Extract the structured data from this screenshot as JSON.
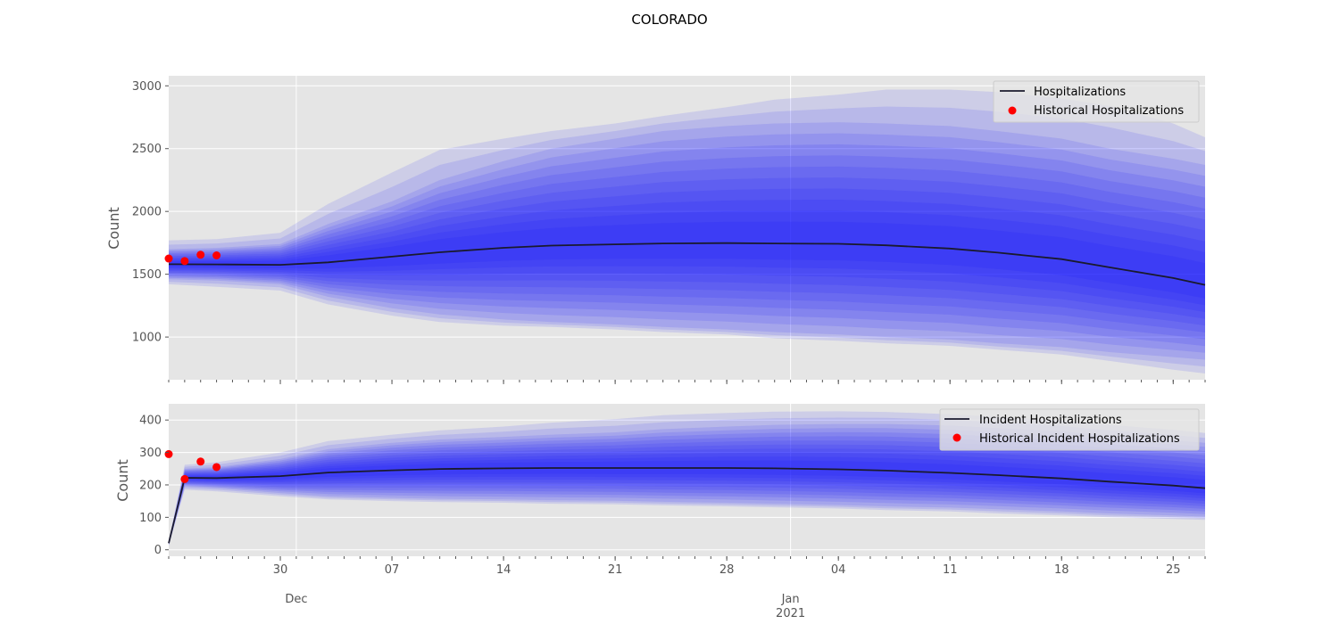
{
  "title": "COLORADO",
  "colors": {
    "background": "#E5E5E5",
    "grid": "#FFFFFF",
    "band": "#0000FF",
    "median": "#1A1A2E",
    "historical": "#FF0000"
  },
  "x_axis": {
    "start": "2020-11-23",
    "end": "2021-01-27",
    "minor_ticks": "daily",
    "major_tick_labels": [
      {
        "date": "2020-11-30",
        "label": "30"
      },
      {
        "date": "2020-12-07",
        "label": "07"
      },
      {
        "date": "2020-12-14",
        "label": "14"
      },
      {
        "date": "2020-12-21",
        "label": "21"
      },
      {
        "date": "2020-12-28",
        "label": "28"
      },
      {
        "date": "2021-01-04",
        "label": "04"
      },
      {
        "date": "2021-01-11",
        "label": "11"
      },
      {
        "date": "2021-01-18",
        "label": "18"
      },
      {
        "date": "2021-01-25",
        "label": "25"
      }
    ],
    "month_labels": [
      {
        "date": "2020-12-01",
        "label": "Dec"
      },
      {
        "date": "2021-01-01",
        "label": "Jan"
      }
    ],
    "year_label": {
      "date": "2021-01-01",
      "label": "2021"
    }
  },
  "chart_data": [
    {
      "type": "area",
      "ylabel": "Count",
      "ylim": [
        660,
        3080
      ],
      "yticks": [
        1000,
        1500,
        2000,
        2500,
        3000
      ],
      "grid": true,
      "legend_position": "top-right",
      "legend": [
        {
          "name": "Hospitalizations",
          "marker": "line"
        },
        {
          "name": "Historical Hospitalizations",
          "marker": "dot"
        }
      ],
      "x": [
        "2020-11-23",
        "2020-11-26",
        "2020-11-30",
        "2020-12-03",
        "2020-12-07",
        "2020-12-10",
        "2020-12-14",
        "2020-12-17",
        "2020-12-21",
        "2020-12-24",
        "2020-12-28",
        "2020-12-31",
        "2021-01-04",
        "2021-01-07",
        "2021-01-11",
        "2021-01-14",
        "2021-01-18",
        "2021-01-21",
        "2021-01-25",
        "2021-01-27"
      ],
      "median": [
        1580,
        1578,
        1575,
        1595,
        1640,
        1675,
        1710,
        1728,
        1738,
        1745,
        1748,
        1745,
        1742,
        1730,
        1705,
        1672,
        1620,
        1555,
        1470,
        1415
      ],
      "lower": [
        1460,
        1450,
        1420,
        1320,
        1230,
        1180,
        1140,
        1120,
        1100,
        1080,
        1060,
        1040,
        1020,
        1000,
        980,
        950,
        920,
        880,
        840,
        820
      ],
      "upper": [
        1700,
        1710,
        1740,
        1900,
        2080,
        2250,
        2400,
        2500,
        2580,
        2640,
        2680,
        2700,
        2710,
        2700,
        2680,
        2640,
        2580,
        2500,
        2420,
        2370
      ],
      "outer_lower": [
        1420,
        1400,
        1370,
        1260,
        1170,
        1120,
        1090,
        1080,
        1060,
        1040,
        1020,
        990,
        970,
        950,
        930,
        900,
        860,
        810,
        740,
        710
      ],
      "outer_upper": [
        1770,
        1780,
        1830,
        2060,
        2310,
        2490,
        2580,
        2640,
        2700,
        2760,
        2830,
        2890,
        2930,
        2970,
        2970,
        2950,
        2900,
        2840,
        2700,
        2590
      ],
      "historical": [
        {
          "x": "2020-11-23",
          "y": 1625
        },
        {
          "x": "2020-11-24",
          "y": 1605
        },
        {
          "x": "2020-11-25",
          "y": 1655
        },
        {
          "x": "2020-11-26",
          "y": 1650
        }
      ]
    },
    {
      "type": "area",
      "ylabel": "Count",
      "ylim": [
        -20,
        450
      ],
      "yticks": [
        0,
        100,
        200,
        300,
        400
      ],
      "grid": true,
      "legend_position": "top-right",
      "legend": [
        {
          "name": "Incident Hospitalizations",
          "marker": "line"
        },
        {
          "name": "Historical Incident Hospitalizations",
          "marker": "dot"
        }
      ],
      "x": [
        "2020-11-23",
        "2020-11-24",
        "2020-11-26",
        "2020-11-30",
        "2020-12-03",
        "2020-12-07",
        "2020-12-10",
        "2020-12-14",
        "2020-12-17",
        "2020-12-21",
        "2020-12-24",
        "2020-12-28",
        "2020-12-31",
        "2021-01-04",
        "2021-01-07",
        "2021-01-11",
        "2021-01-14",
        "2021-01-18",
        "2021-01-21",
        "2021-01-25",
        "2021-01-27"
      ],
      "median": [
        20,
        222,
        221,
        227,
        238,
        245,
        249,
        251,
        252,
        252,
        252,
        252,
        251,
        248,
        244,
        237,
        230,
        220,
        210,
        198,
        190
      ],
      "lower": [
        15,
        195,
        190,
        175,
        165,
        160,
        157,
        155,
        153,
        151,
        148,
        145,
        142,
        138,
        134,
        130,
        125,
        118,
        112,
        106,
        102
      ],
      "upper": [
        25,
        250,
        255,
        280,
        310,
        330,
        340,
        348,
        355,
        362,
        372,
        380,
        385,
        388,
        388,
        383,
        375,
        365,
        352,
        338,
        330
      ],
      "outer_lower": [
        12,
        185,
        180,
        165,
        155,
        150,
        147,
        145,
        142,
        140,
        137,
        134,
        131,
        127,
        122,
        118,
        112,
        106,
        100,
        95,
        92
      ],
      "outer_upper": [
        28,
        262,
        270,
        300,
        335,
        355,
        368,
        380,
        392,
        403,
        415,
        422,
        426,
        427,
        425,
        418,
        410,
        398,
        385,
        370,
        360
      ],
      "historical": [
        {
          "x": "2020-11-23",
          "y": 295
        },
        {
          "x": "2020-11-24",
          "y": 218
        },
        {
          "x": "2020-11-25",
          "y": 272
        },
        {
          "x": "2020-11-26",
          "y": 255
        }
      ]
    }
  ]
}
